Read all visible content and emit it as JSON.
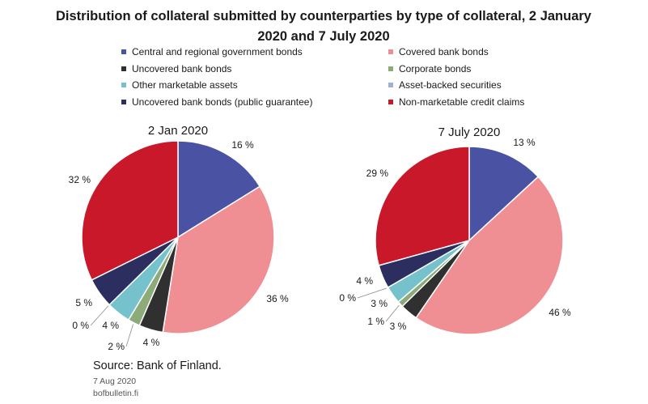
{
  "chart_data": {
    "type": "pie",
    "title": "Distribution  of collateral submitted by counterparties by type of collateral, 2 January  2020 and 7 July 2020",
    "legend_placement": "top",
    "categories": [
      "Central and regional government bonds",
      "Covered bank bonds",
      "Uncovered bank bonds",
      "Corporate bonds",
      "Other marketable assets",
      "Asset-backed securities",
      "Uncovered bank bonds (public guarantee)",
      "Non-marketable credit claims"
    ],
    "colors": [
      "#4a53a3",
      "#ef8f94",
      "#303030",
      "#8cab78",
      "#76c2cc",
      "#9db1d2",
      "#2b2e5e",
      "#c8182a"
    ],
    "pies": [
      {
        "name": "2 Jan 2020",
        "values": [
          16,
          36,
          4,
          2,
          4,
          0,
          5,
          32
        ],
        "labels": [
          "16 %",
          "36 %",
          "4 %",
          "2 %",
          "4 %",
          "0 %",
          "5 %",
          "32 %"
        ]
      },
      {
        "name": "7 July 2020",
        "values": [
          13,
          46,
          3,
          1,
          3,
          0,
          4,
          29
        ],
        "labels": [
          "13 %",
          "46 %",
          "3 %",
          "1 %",
          "3 %",
          "0 %",
          "4 %",
          "29 %"
        ]
      }
    ]
  },
  "footer": {
    "source": "Source: Bank of Finland.",
    "date": "7 Aug 2020",
    "site": "bofbulletin.fi"
  }
}
